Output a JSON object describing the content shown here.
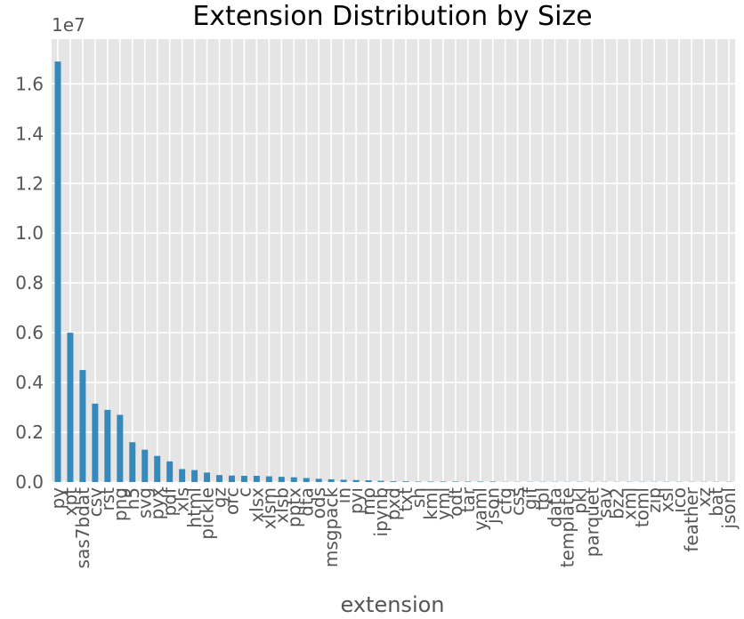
{
  "chart_data": {
    "type": "bar",
    "title": "Extension Distribution by Size",
    "xlabel": "extension",
    "ylabel": "",
    "y_offset_label": "1e7",
    "ylim": [
      0,
      1.78
    ],
    "y_ticks": [
      "0.0",
      "0.2",
      "0.4",
      "0.6",
      "0.8",
      "1.0",
      "1.2",
      "1.4",
      "1.6"
    ],
    "grid": true,
    "legend": false,
    "bar_color": "#348ABD",
    "plot_background": "#E5E5E5",
    "grid_color": "#FFFFFF",
    "categories": [
      "py",
      "xpt",
      "sas7bdat",
      "csv",
      "rst",
      "png",
      "h5",
      "svg",
      "pyx",
      "pdf",
      "xls",
      "html",
      "pickle",
      "gz",
      "orc",
      "c",
      "xlsx",
      "xlsm",
      "xlsb",
      "pptx",
      "dta",
      "ods",
      "msgpack",
      "in",
      "pyi",
      "mo",
      "ipynb",
      "pxd",
      "txt",
      "sh",
      "kml",
      "yml",
      "odt",
      "tar",
      "yaml",
      "json",
      "cfg",
      "css",
      "gif",
      "tpl",
      "data",
      "template",
      "pkl",
      "parquet",
      "sav",
      "bz2",
      "xml",
      "toml",
      "zip",
      "xsl",
      "ico",
      "feather",
      "xz",
      "bat",
      "jsonl"
    ],
    "values": [
      1.69,
      0.6,
      0.45,
      0.315,
      0.29,
      0.27,
      0.16,
      0.13,
      0.105,
      0.083,
      0.052,
      0.048,
      0.038,
      0.028,
      0.026,
      0.025,
      0.025,
      0.023,
      0.021,
      0.019,
      0.016,
      0.013,
      0.011,
      0.009,
      0.008,
      0.007,
      0.005,
      0.003,
      0.003,
      0.002,
      0.002,
      0.002,
      0.002,
      0.002,
      0.002,
      0.002,
      0.001,
      0.001,
      0.001,
      0.001,
      0.001,
      0.001,
      0.001,
      0.001,
      0.001,
      0.001,
      0.001,
      0.001,
      0.001,
      0.001,
      0.001,
      0.001,
      0.001,
      0.001,
      0.001
    ]
  }
}
